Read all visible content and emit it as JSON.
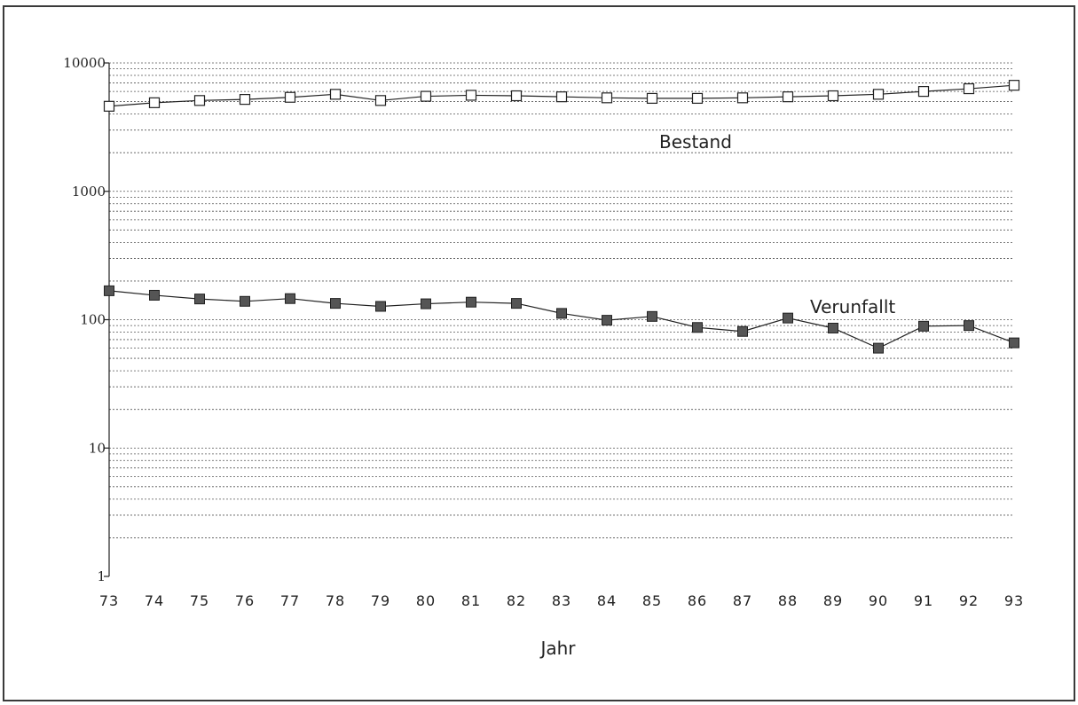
{
  "chart_data": {
    "type": "line",
    "y_scale": "log",
    "ylim": [
      1,
      10000
    ],
    "y_ticks": [
      "1",
      "10",
      "100",
      "1000",
      "10000"
    ],
    "x": [
      "73",
      "74",
      "75",
      "76",
      "77",
      "78",
      "79",
      "80",
      "81",
      "82",
      "83",
      "84",
      "85",
      "86",
      "87",
      "88",
      "89",
      "90",
      "91",
      "92",
      "93"
    ],
    "xlabel": "Jahr",
    "ylabel": "",
    "grid": true,
    "series": [
      {
        "name": "Bestand",
        "marker": "open-square",
        "values": [
          4600,
          4900,
          5100,
          5200,
          5400,
          5700,
          5100,
          5500,
          5600,
          5550,
          5450,
          5350,
          5300,
          5300,
          5350,
          5450,
          5550,
          5700,
          6000,
          6300,
          6700
        ]
      },
      {
        "name": "Verunfallt",
        "marker": "filled-square",
        "values": [
          168,
          155,
          145,
          139,
          146,
          134,
          127,
          133,
          137,
          134,
          112,
          99,
          106,
          87,
          81,
          103,
          86,
          60,
          89,
          90,
          66
        ]
      }
    ]
  }
}
